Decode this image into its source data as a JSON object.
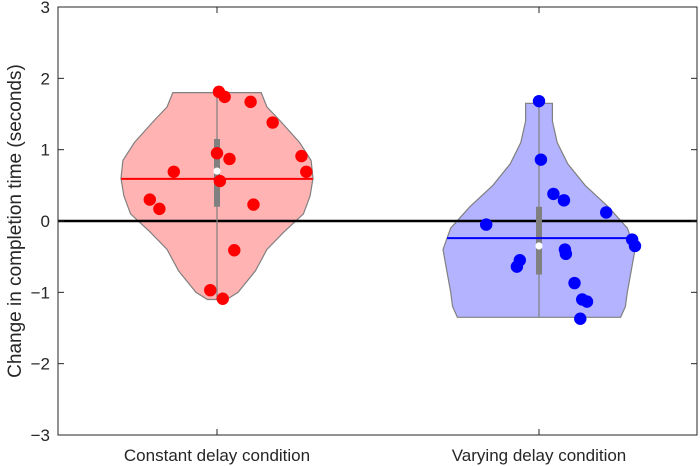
{
  "chart_data": {
    "type": "violin",
    "title": "",
    "xlabel": "",
    "ylabel": "Change in completion time (seconds)",
    "ylim": [
      -3,
      3
    ],
    "yticks": [
      -3,
      -2,
      -1,
      0,
      1,
      2,
      3
    ],
    "ytick_labels": [
      "−3",
      "−2",
      "−1",
      "0",
      "1",
      "2",
      "3"
    ],
    "reference_line": 0,
    "categories": [
      "Constant delay condition",
      "Varying delay condition"
    ],
    "series": [
      {
        "name": "Constant delay condition",
        "color": "#ff0000",
        "fill": "#ffb3b3",
        "mean": 0.59,
        "median": 0.7,
        "q1": 0.2,
        "q3": 1.15,
        "whisker_low": -1.1,
        "whisker_high": 1.8,
        "violin_range": [
          -1.1,
          1.8
        ],
        "violin_profile": [
          [
            -1.1,
            0.1
          ],
          [
            -1.0,
            0.22
          ],
          [
            -0.7,
            0.4
          ],
          [
            -0.4,
            0.52
          ],
          [
            -0.15,
            0.7
          ],
          [
            0.1,
            0.9
          ],
          [
            0.35,
            0.97
          ],
          [
            0.6,
            1.0
          ],
          [
            0.85,
            0.98
          ],
          [
            1.1,
            0.86
          ],
          [
            1.4,
            0.66
          ],
          [
            1.6,
            0.52
          ],
          [
            1.8,
            0.46
          ]
        ],
        "points": [
          [
            0.02,
            1.81
          ],
          [
            0.08,
            1.74
          ],
          [
            0.35,
            1.67
          ],
          [
            0.58,
            1.38
          ],
          [
            0.0,
            0.95
          ],
          [
            0.13,
            0.87
          ],
          [
            0.88,
            0.91
          ],
          [
            0.93,
            0.69
          ],
          [
            -0.45,
            0.69
          ],
          [
            0.03,
            0.56
          ],
          [
            -0.7,
            0.3
          ],
          [
            -0.6,
            0.17
          ],
          [
            0.38,
            0.23
          ],
          [
            0.18,
            -0.41
          ],
          [
            -0.07,
            -0.97
          ],
          [
            0.06,
            -1.09
          ]
        ]
      },
      {
        "name": "Varying delay condition",
        "color": "#0000ff",
        "fill": "#b3b3ff",
        "mean": -0.24,
        "median": -0.35,
        "q1": -0.75,
        "q3": 0.2,
        "whisker_low": -1.35,
        "whisker_high": 1.65,
        "violin_range": [
          -1.35,
          1.65
        ],
        "violin_profile": [
          [
            -1.35,
            0.85
          ],
          [
            -1.2,
            0.9
          ],
          [
            -1.0,
            0.92
          ],
          [
            -0.7,
            0.96
          ],
          [
            -0.4,
            1.0
          ],
          [
            -0.1,
            0.92
          ],
          [
            0.2,
            0.72
          ],
          [
            0.5,
            0.48
          ],
          [
            0.8,
            0.3
          ],
          [
            1.1,
            0.19
          ],
          [
            1.4,
            0.14
          ],
          [
            1.65,
            0.14
          ]
        ],
        "points": [
          [
            0.0,
            1.68
          ],
          [
            0.02,
            0.86
          ],
          [
            0.15,
            0.38
          ],
          [
            0.26,
            0.29
          ],
          [
            0.7,
            0.12
          ],
          [
            -0.55,
            -0.05
          ],
          [
            0.97,
            -0.26
          ],
          [
            1.0,
            -0.35
          ],
          [
            0.27,
            -0.4
          ],
          [
            0.28,
            -0.46
          ],
          [
            -0.2,
            -0.55
          ],
          [
            -0.23,
            -0.64
          ],
          [
            0.37,
            -0.87
          ],
          [
            0.45,
            -1.1
          ],
          [
            0.5,
            -1.13
          ],
          [
            0.43,
            -1.37
          ]
        ]
      }
    ]
  }
}
